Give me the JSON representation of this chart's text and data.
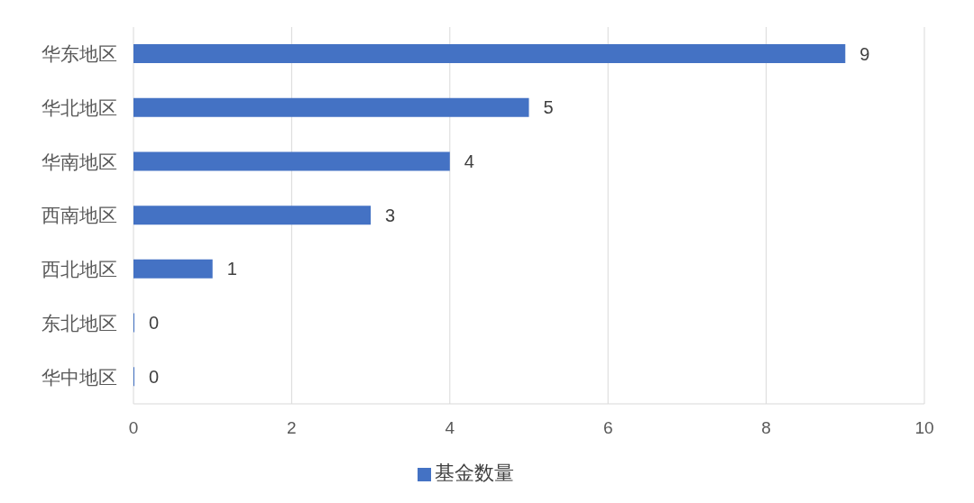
{
  "chart_data": {
    "type": "bar",
    "orientation": "horizontal",
    "categories": [
      "华东地区",
      "华北地区",
      "华南地区",
      "西南地区",
      "西北地区",
      "东北地区",
      "华中地区"
    ],
    "series": [
      {
        "name": "基金数量",
        "color": "#4472c4",
        "values": [
          9,
          5,
          4,
          3,
          1,
          0,
          0
        ]
      }
    ],
    "xlim": [
      0,
      10
    ],
    "xticks": [
      0,
      2,
      4,
      6,
      8,
      10
    ],
    "grid": "x",
    "legend": "bottom",
    "data_labels": true
  }
}
